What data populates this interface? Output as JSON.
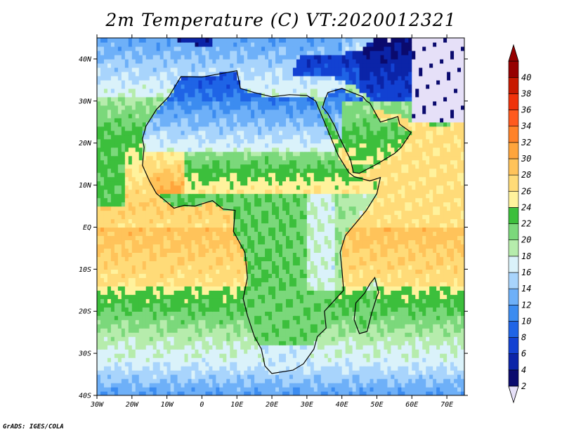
{
  "chart_data": {
    "type": "heatmap",
    "title": "2m Temperature (C) VT:2020012321",
    "variable": "2m Temperature",
    "units": "C",
    "valid_time": "2020012321",
    "x_ticks": [
      "30W",
      "20W",
      "10W",
      "0",
      "10E",
      "20E",
      "30E",
      "40E",
      "50E",
      "60E",
      "70E"
    ],
    "y_ticks": [
      "40S",
      "30S",
      "20S",
      "10S",
      "EQ",
      "10N",
      "20N",
      "30N",
      "40N"
    ],
    "x_range_lon": [
      -30,
      75
    ],
    "y_range_lat": [
      -40,
      45
    ],
    "colorbar_levels": [
      2,
      4,
      6,
      8,
      10,
      12,
      14,
      16,
      18,
      20,
      22,
      24,
      26,
      28,
      30,
      32,
      34,
      36,
      38,
      40
    ],
    "colorbar_colors": [
      "#0a0a6e",
      "#0b24a8",
      "#1241d2",
      "#1f64e6",
      "#3c8cf0",
      "#6eb0f8",
      "#a8d4fc",
      "#daf2fa",
      "#b6ecac",
      "#7bd87b",
      "#3cbf3c",
      "#fff29c",
      "#ffdb78",
      "#ffc35a",
      "#ffa53c",
      "#ff8228",
      "#ff5a1e",
      "#f0320a",
      "#c81900",
      "#960000"
    ],
    "colorbar_extend": "both",
    "grid": false
  },
  "credit": "GrADS: IGES/COLA"
}
